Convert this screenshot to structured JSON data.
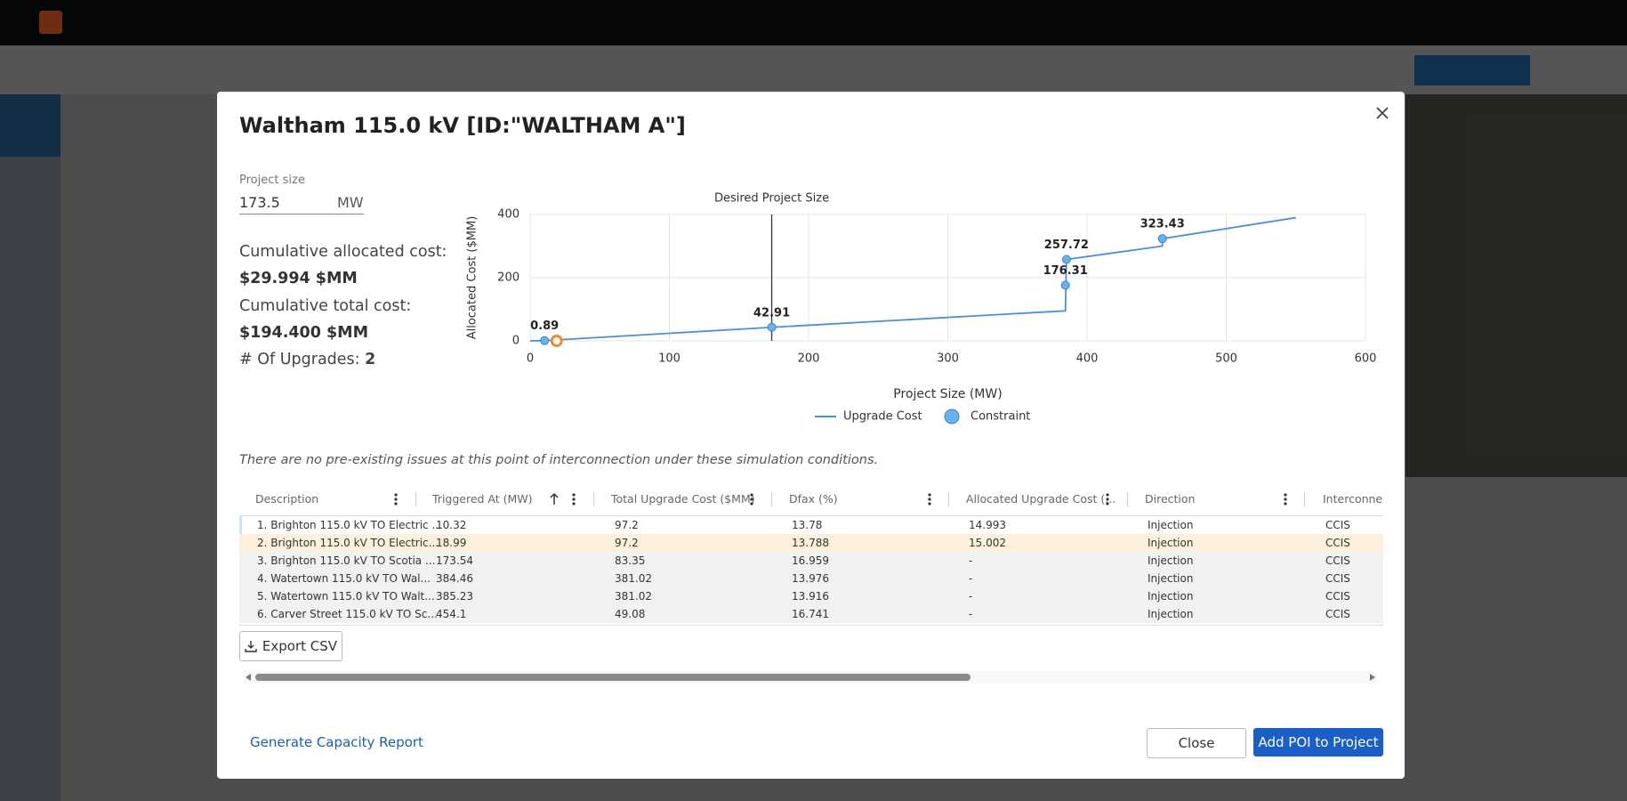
{
  "modal": {
    "title": "Waltham 115.0 kV [ID:\"WALTHAM A\"]",
    "project_size": {
      "label": "Project size",
      "value": "173.5",
      "unit": "MW"
    },
    "allocated_label": "Cumulative allocated cost:",
    "allocated_value": "$29.994 $MM",
    "total_label": "Cumulative total cost:",
    "total_value": "$194.400 $MM",
    "upgrades_label": "# Of Upgrades:",
    "upgrades_value": "2",
    "note": "There are no pre-existing issues at this point of interconnection under these simulation conditions.",
    "export": "Export CSV",
    "report_link": "Generate Capacity Report",
    "close": "Close",
    "add": "Add POI to Project"
  },
  "chart_data": {
    "type": "line",
    "x_label": "Project Size (MW)",
    "y_label": "Allocated Cost ($MM)",
    "xlim": [
      0,
      600
    ],
    "xticks": [
      0,
      100,
      200,
      300,
      400,
      500,
      600
    ],
    "ylim": [
      0,
      400
    ],
    "yticks": [
      0,
      200,
      400
    ],
    "grid": true,
    "series": [
      {
        "name": "Upgrade Cost",
        "color": "#4a90d9",
        "x": [
          0,
          10.32,
          173.54,
          384.46,
          385.23,
          454.1,
          454.1,
          550
        ],
        "values": [
          0,
          0.89,
          42.91,
          95,
          257.72,
          300,
          323.43,
          390
        ]
      },
      {
        "name": "Constraint",
        "type": "scatter",
        "color": "#6ab0ee",
        "x": [
          10.32,
          173.54,
          384.46,
          385.23,
          454.1
        ],
        "values": [
          0.89,
          42.91,
          176.31,
          257.72,
          323.43
        ]
      }
    ],
    "selected": {
      "x": 18.99,
      "y": 0,
      "color": "#f08a2c"
    },
    "reference_line": {
      "label": "Desired Project Size",
      "x": 173.5
    }
  },
  "table": {
    "columns": [
      "Description",
      "Triggered At (MW)",
      "Total Upgrade Cost ($MM)",
      "Dfax (%)",
      "Allocated Upgrade Cost (...",
      "Direction",
      "Interconnecti"
    ],
    "rows": [
      [
        "1. Brighton 115.0 kV TO Electric ...",
        "10.32",
        "97.2",
        "13.78",
        "14.993",
        "Injection",
        "CCIS"
      ],
      [
        "2. Brighton 115.0 kV TO Electric...",
        "18.99",
        "97.2",
        "13.788",
        "15.002",
        "Injection",
        "CCIS"
      ],
      [
        "3. Brighton 115.0 kV TO Scotia ...",
        "173.54",
        "83.35",
        "16.959",
        "-",
        "Injection",
        "CCIS"
      ],
      [
        "4. Watertown 115.0 kV TO Wal...",
        "384.46",
        "381.02",
        "13.976",
        "-",
        "Injection",
        "CCIS"
      ],
      [
        "5. Watertown 115.0 kV TO Walt...",
        "385.23",
        "381.02",
        "13.916",
        "-",
        "Injection",
        "CCIS"
      ],
      [
        "6. Carver Street 115.0 kV TO Sc...",
        "454.1",
        "49.08",
        "16.741",
        "-",
        "Injection",
        "CCIS"
      ]
    ],
    "selected_row": 1
  }
}
